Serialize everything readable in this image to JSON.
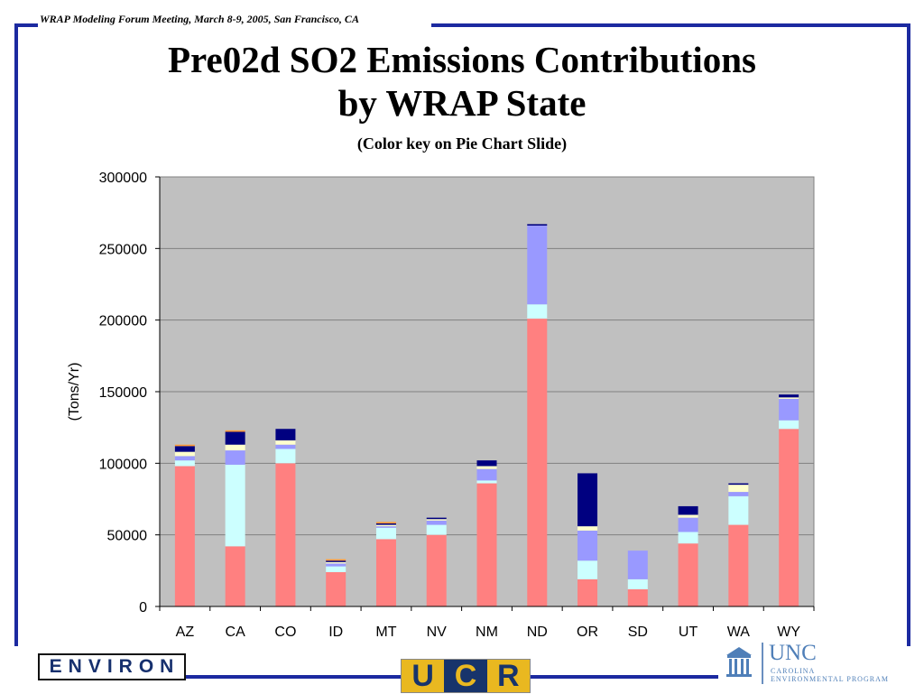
{
  "header": {
    "meeting": "WRAP Modeling Forum Meeting, March 8-9, 2005, San Francisco, CA"
  },
  "colors": {
    "frame": "#1c2aa0",
    "plot_bg": "#c0c0c0",
    "grid": "#808080",
    "series": [
      "#ff8080",
      "#ccffff",
      "#9999ff",
      "#ffffcc",
      "#000080",
      "#ff9933"
    ]
  },
  "chart_data": {
    "type": "bar",
    "stacked": true,
    "title": "Pre02d SO2 Emissions Contributions",
    "title_line2": "by WRAP State",
    "subtitle": "(Color key on Pie Chart Slide)",
    "xlabel": "",
    "ylabel": "(Tons/Yr)",
    "ylim": [
      0,
      300000
    ],
    "yticks": [
      0,
      50000,
      100000,
      150000,
      200000,
      250000,
      300000
    ],
    "grid": true,
    "categories": [
      "AZ",
      "CA",
      "CO",
      "ID",
      "MT",
      "NV",
      "NM",
      "ND",
      "OR",
      "SD",
      "UT",
      "WA",
      "WY"
    ],
    "series": [
      {
        "values": [
          98000,
          42000,
          100000,
          24000,
          47000,
          50000,
          86000,
          201000,
          19000,
          12000,
          44000,
          57000,
          124000
        ]
      },
      {
        "values": [
          4000,
          57000,
          10000,
          4000,
          8000,
          7000,
          2000,
          10000,
          13000,
          7000,
          8000,
          20000,
          6000
        ]
      },
      {
        "values": [
          3000,
          10000,
          3000,
          2000,
          1000,
          3000,
          8000,
          55000,
          21000,
          20000,
          10000,
          3000,
          15000
        ]
      },
      {
        "values": [
          3000,
          4000,
          3000,
          1000,
          1000,
          1000,
          2000,
          0,
          3000,
          0,
          2000,
          5000,
          1000
        ]
      },
      {
        "values": [
          4000,
          9000,
          8000,
          1000,
          1000,
          1000,
          4000,
          1000,
          37000,
          0,
          6000,
          1000,
          2000
        ]
      },
      {
        "values": [
          1000,
          1000,
          0,
          1000,
          1000,
          0,
          0,
          0,
          0,
          0,
          0,
          0,
          0
        ]
      }
    ]
  },
  "logos": {
    "environ": "ENVIRON",
    "ucr": [
      "U",
      "C",
      "R"
    ],
    "unc": "UNC",
    "unc_sub_1": "CAROLINA",
    "unc_sub_2": "ENVIRONMENTAL PROGRAM"
  }
}
